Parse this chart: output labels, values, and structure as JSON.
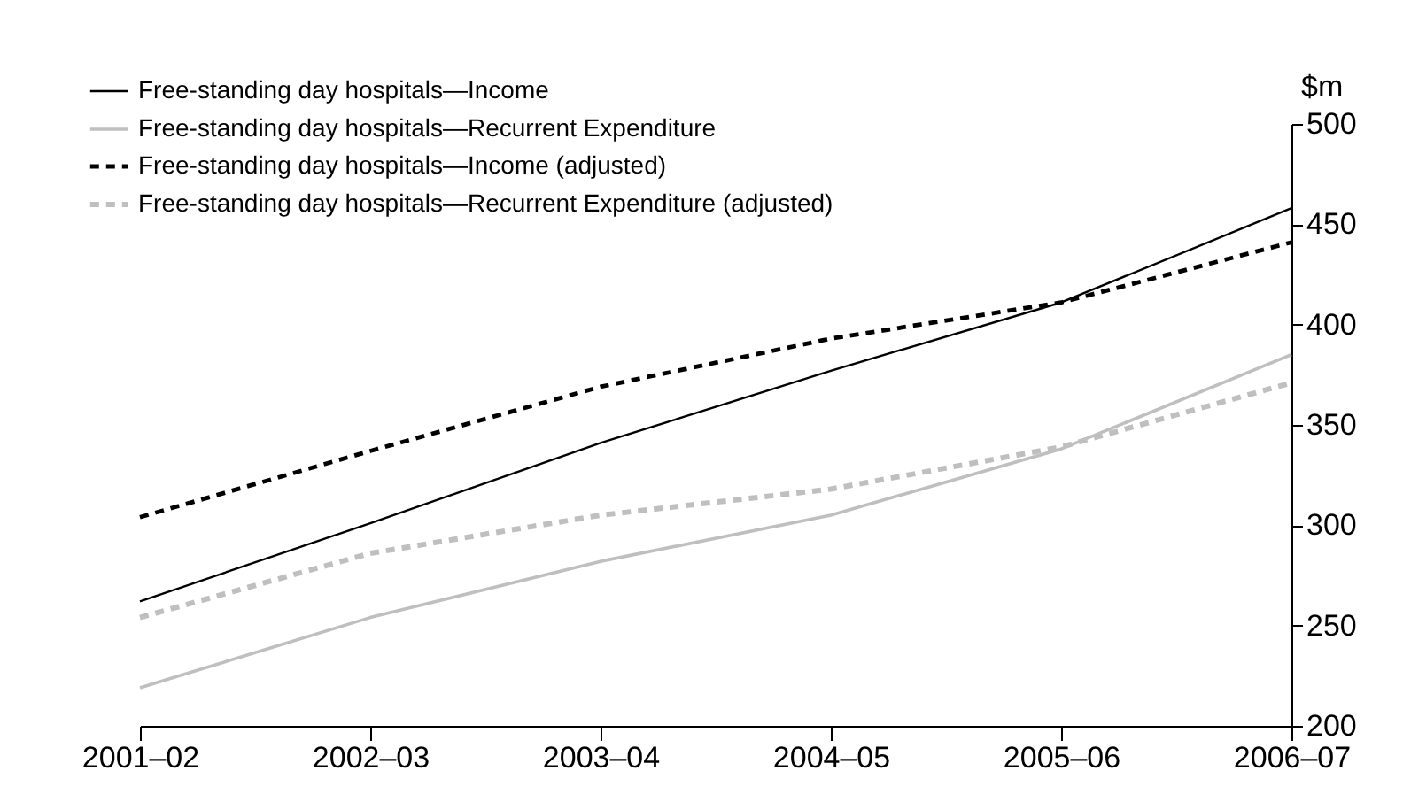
{
  "chart_data": {
    "type": "line",
    "ylabel": "$m",
    "categories": [
      "2001–02",
      "2002–03",
      "2003–04",
      "2004–05",
      "2005–06",
      "2006–07"
    ],
    "series": [
      {
        "name": "Free-standing day hospitals—Income",
        "color": "#000000",
        "line_style": "solid",
        "values": [
          262,
          301,
          341,
          377,
          411,
          458
        ]
      },
      {
        "name": "Free-standing day hospitals—Recurrent Expenditure",
        "color": "#bfbfbf",
        "line_style": "solid",
        "values": [
          219,
          254,
          282,
          305,
          338,
          385
        ]
      },
      {
        "name": "Free-standing day hospitals—Income (adjusted)",
        "color": "#000000",
        "line_style": "dashed",
        "values": [
          304,
          337,
          369,
          393,
          411,
          441
        ]
      },
      {
        "name": "Free-standing day hospitals—Recurrent Expenditure (adjusted)",
        "color": "#bfbfbf",
        "line_style": "dashed",
        "values": [
          254,
          286,
          305,
          318,
          339,
          371
        ]
      }
    ],
    "ylim": [
      200,
      500
    ],
    "yticks": [
      200,
      250,
      300,
      350,
      400,
      450,
      500
    ],
    "grid": false,
    "legend": "top left",
    "marker": "none"
  }
}
